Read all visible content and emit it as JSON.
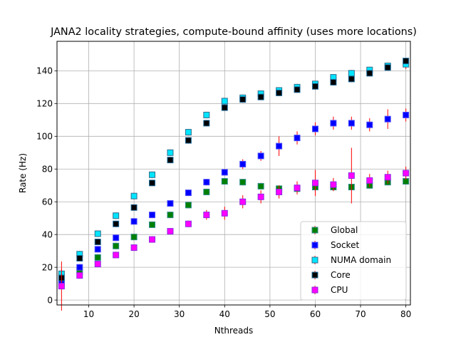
{
  "chart_data": {
    "type": "scatter",
    "title": "JANA2 locality strategies, compute-bound affinity (uses more locations)",
    "xlabel": "Nthreads",
    "ylabel": "Rate (Hz)",
    "xlim": [
      3,
      81
    ],
    "ylim": [
      -3,
      158
    ],
    "xticks": [
      10,
      20,
      30,
      40,
      50,
      60,
      70,
      80
    ],
    "yticks": [
      0,
      20,
      40,
      60,
      80,
      100,
      120,
      140
    ],
    "grid": true,
    "legend_position": "lower-right",
    "error_bar_color": "#ff0000",
    "x": [
      4,
      8,
      12,
      16,
      20,
      24,
      28,
      32,
      36,
      40,
      44,
      48,
      52,
      56,
      60,
      64,
      68,
      72,
      76,
      80
    ],
    "series": [
      {
        "name": "Global",
        "face": "#008000",
        "edge": "#2e8b8b",
        "values": [
          10,
          18,
          26,
          33,
          38.5,
          46,
          52,
          58,
          66,
          72.5,
          72,
          69.5,
          68,
          68,
          69,
          69,
          69,
          70,
          72,
          72.5
        ],
        "errors": [
          2,
          2,
          2,
          2,
          2,
          2,
          2,
          2,
          2,
          2,
          2,
          2,
          2,
          2,
          2,
          2,
          2,
          2,
          2,
          2
        ]
      },
      {
        "name": "Socket",
        "face": "#0000ff",
        "edge": "#4d4dff",
        "values": [
          12,
          20,
          31,
          38,
          48,
          52,
          59,
          65.5,
          72,
          78,
          83,
          88,
          94,
          99,
          104.5,
          108,
          108,
          107,
          110.5,
          113
        ],
        "errors": [
          3,
          2,
          2,
          2,
          2,
          2,
          2,
          2,
          2,
          2,
          3,
          3,
          6,
          4,
          4,
          4,
          4,
          4,
          6,
          4
        ]
      },
      {
        "name": "NUMA domain",
        "face": "#00e5ff",
        "edge": "#2f6f8f",
        "values": [
          16,
          28,
          40.5,
          51.5,
          63.5,
          76.5,
          90,
          102.5,
          113,
          121.5,
          123.5,
          126,
          128,
          130,
          132,
          136,
          138.5,
          140.5,
          143,
          144
        ],
        "errors": [
          3,
          2,
          2,
          2,
          2,
          2,
          2,
          2,
          2,
          2,
          2,
          2,
          2,
          2,
          2,
          2,
          2,
          2,
          2,
          3
        ]
      },
      {
        "name": "Core",
        "face": "#000000",
        "edge": "#1f6f9f",
        "values": [
          13.5,
          25.5,
          35.5,
          46.5,
          56.5,
          71.5,
          85.5,
          97.5,
          108,
          117.5,
          122.5,
          124,
          126.5,
          128.5,
          130.5,
          133,
          135,
          138.5,
          142,
          146
        ],
        "errors": [
          3,
          2,
          2,
          2,
          2,
          2,
          2,
          2,
          2,
          2,
          2,
          2,
          2,
          2,
          2,
          2,
          2,
          2,
          2,
          2
        ]
      },
      {
        "name": "CPU",
        "face": "#ff00ff",
        "edge": "#8a2be2",
        "values": [
          8.5,
          15,
          22,
          27.5,
          32,
          37,
          42,
          46.5,
          52,
          53,
          60,
          63,
          66,
          68.5,
          71.5,
          70.5,
          76,
          73,
          75,
          77.5
        ],
        "errors": [
          15,
          2,
          2,
          2,
          2,
          2,
          2,
          2,
          3,
          4,
          4,
          4,
          4,
          4,
          8,
          4,
          17,
          4,
          4,
          4
        ]
      }
    ]
  }
}
